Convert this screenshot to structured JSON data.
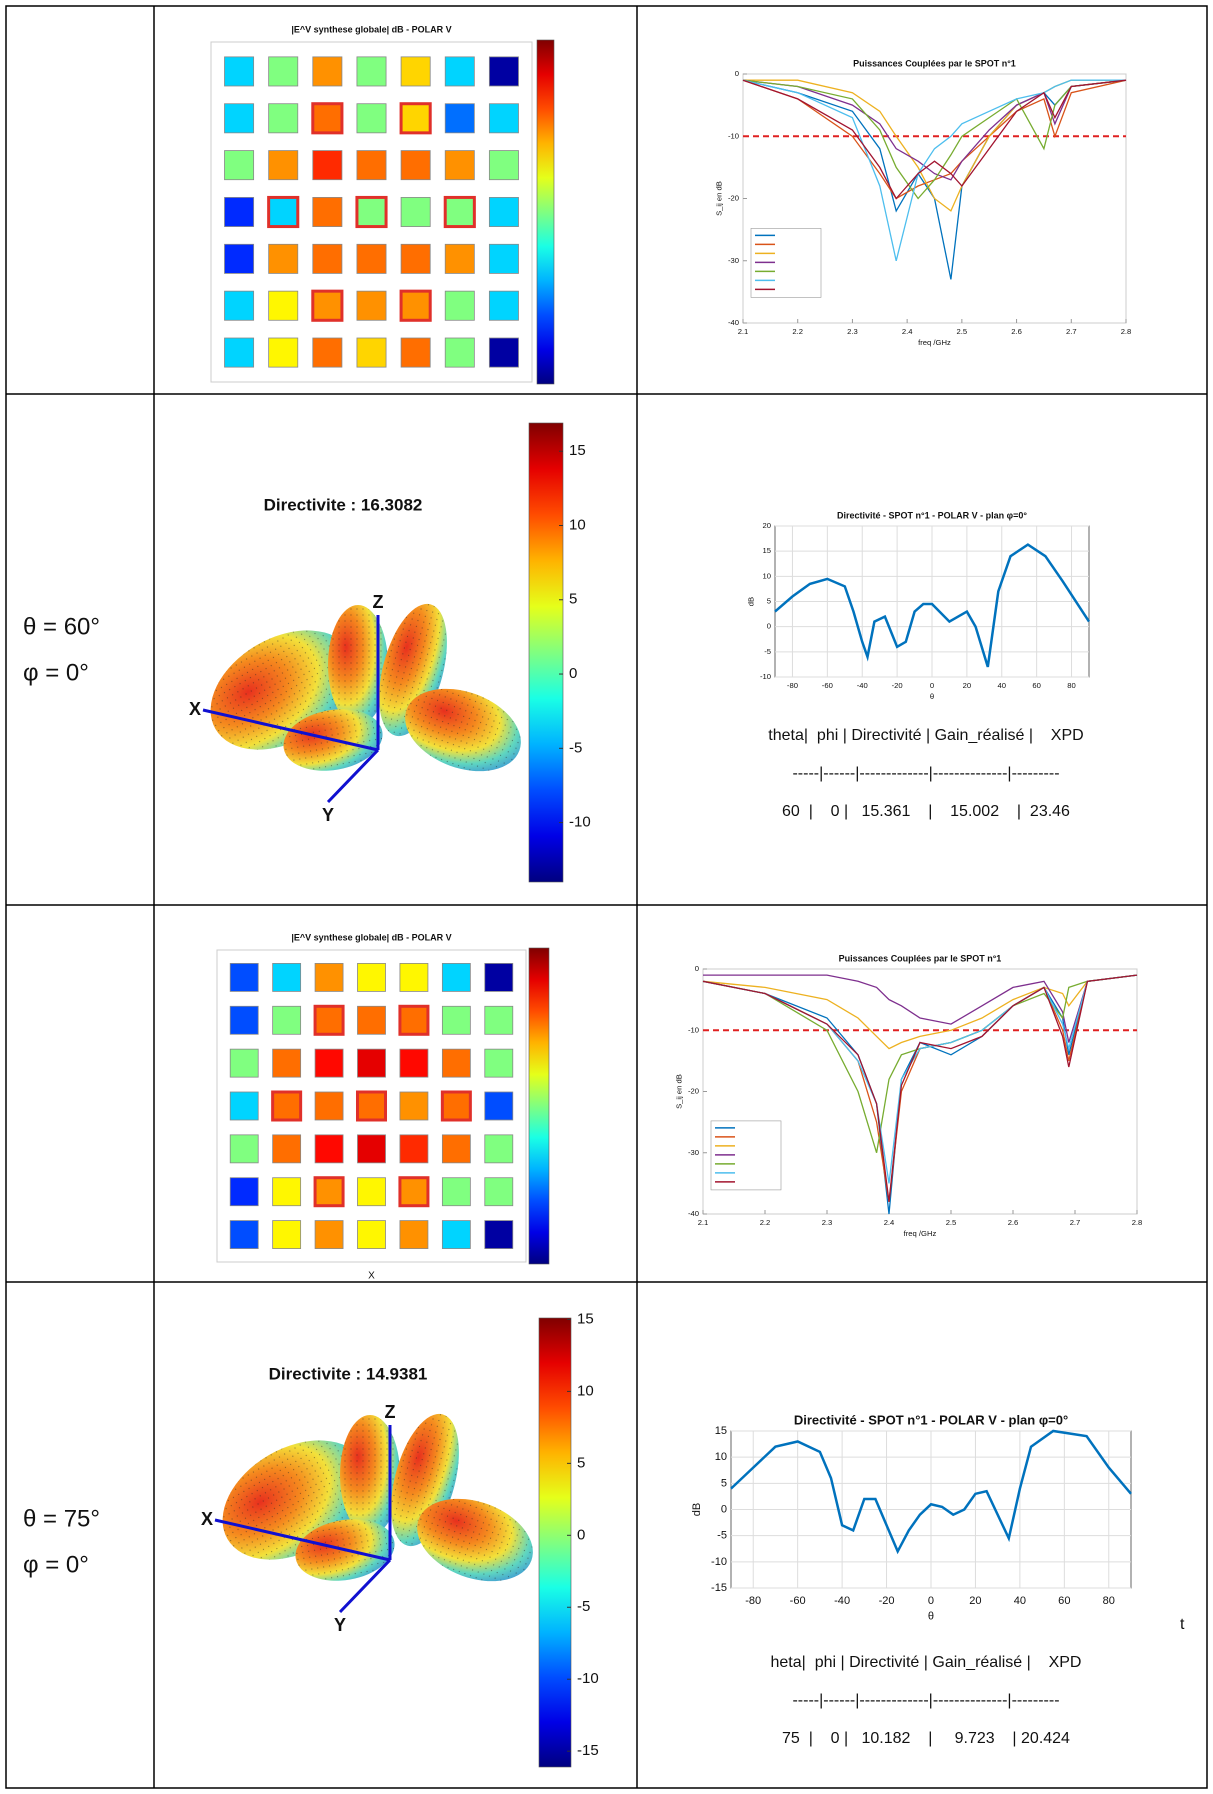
{
  "table": {
    "rows": [
      {
        "heatmap": {
          "type": "heatmap",
          "title": "|E^V synthese globale| dB - POLAR V",
          "clim": [
            -30,
            0
          ],
          "values": [
            [
              -20,
              -15,
              -8,
              -15,
              -10,
              -20,
              -29
            ],
            [
              -20,
              -15,
              -7,
              -15,
              -10,
              -23,
              -20
            ],
            [
              -15,
              -8,
              -5,
              -7,
              -7,
              -8,
              -15
            ],
            [
              -25,
              -20,
              -7,
              -15,
              -15,
              -15,
              -20
            ],
            [
              -25,
              -8,
              -7,
              -7,
              -7,
              -8,
              -20
            ],
            [
              -20,
              -11,
              -8,
              -8,
              -8,
              -15,
              -20
            ],
            [
              -20,
              -11,
              -7,
              -10,
              -7,
              -15,
              -29
            ]
          ],
          "highlighted": [
            [
              1,
              2
            ],
            [
              1,
              4
            ],
            [
              3,
              1
            ],
            [
              3,
              3
            ],
            [
              3,
              5
            ],
            [
              5,
              2
            ],
            [
              5,
              4
            ]
          ],
          "highlight_color": "#e0302a"
        },
        "coupling_chart": {
          "type": "line",
          "title": "Puissances Couplées par le SPOT n°1",
          "xlabel": "freq /GHz",
          "ylabel": "S_ij en dB",
          "xlim": [
            2.1,
            2.8
          ],
          "ylim": [
            -40,
            0
          ],
          "xticks": [
            2.1,
            2.2,
            2.3,
            2.4,
            2.5,
            2.6,
            2.7,
            2.8
          ],
          "yticks": [
            0,
            -10,
            -20,
            -30,
            -40
          ],
          "grid": false,
          "threshold": -10,
          "threshold_color": "#e02020",
          "x": [
            2.1,
            2.2,
            2.3,
            2.35,
            2.38,
            2.42,
            2.45,
            2.48,
            2.5,
            2.55,
            2.6,
            2.65,
            2.67,
            2.7,
            2.8
          ],
          "series": [
            {
              "color": "#0072bd",
              "values": [
                -1,
                -3,
                -6,
                -12,
                -22,
                -16,
                -20,
                -33,
                -18,
                -10,
                -5,
                -3,
                -5,
                -2,
                -1
              ]
            },
            {
              "color": "#d95319",
              "values": [
                -1,
                -4,
                -10,
                -16,
                -20,
                -18,
                -17,
                -16,
                -14,
                -10,
                -6,
                -4,
                -10,
                -3,
                -1
              ]
            },
            {
              "color": "#edb120",
              "values": [
                -1,
                -1,
                -3,
                -6,
                -10,
                -15,
                -20,
                -22,
                -18,
                -10,
                -5,
                -3,
                -2,
                -1,
                -1
              ]
            },
            {
              "color": "#7e2f8e",
              "values": [
                -1,
                -2,
                -5,
                -8,
                -12,
                -14,
                -16,
                -17,
                -14,
                -9,
                -5,
                -3,
                -8,
                -2,
                -1
              ]
            },
            {
              "color": "#77ac30",
              "values": [
                -1,
                -2,
                -4,
                -9,
                -15,
                -20,
                -17,
                -13,
                -10,
                -7,
                -4,
                -12,
                -5,
                -2,
                -1
              ]
            },
            {
              "color": "#4dbeee",
              "values": [
                -1,
                -3,
                -7,
                -18,
                -30,
                -16,
                -12,
                -10,
                -8,
                -6,
                -4,
                -3,
                -2,
                -1,
                -1
              ]
            },
            {
              "color": "#a2142f",
              "values": [
                -1,
                -4,
                -9,
                -15,
                -20,
                -16,
                -14,
                -16,
                -18,
                -12,
                -6,
                -3,
                -7,
                -2,
                -1
              ]
            }
          ]
        }
      },
      {
        "angles": [
          "θ = 60°",
          "φ = 0°"
        ],
        "pattern": {
          "title": "Directivite : 16.3082",
          "axes": [
            "X",
            "Y",
            "Z"
          ],
          "clim": [
            -14,
            16.9
          ],
          "cticks": [
            15,
            10,
            5,
            0,
            -5,
            -10
          ]
        },
        "directivity_chart": {
          "type": "line",
          "title": "Directivité - SPOT n°1 - POLAR V - plan φ=0°",
          "xlabel": "θ",
          "ylabel": "dB",
          "xlim": [
            -90,
            90
          ],
          "ylim": [
            -10,
            20
          ],
          "xticks": [
            -80,
            -60,
            -40,
            -20,
            0,
            20,
            40,
            60,
            80
          ],
          "yticks": [
            -10,
            -5,
            0,
            5,
            10,
            15,
            20
          ],
          "grid": true,
          "x": [
            -90,
            -80,
            -70,
            -60,
            -50,
            -45,
            -40,
            -37,
            -33,
            -27,
            -20,
            -15,
            -10,
            -5,
            0,
            10,
            20,
            25,
            32,
            38,
            45,
            55,
            65,
            75,
            90
          ],
          "series": [
            {
              "color": "#0072bd",
              "values": [
                3,
                6,
                8.5,
                9.5,
                8,
                3,
                -3,
                -6,
                1,
                2,
                -4,
                -3,
                3,
                4.5,
                4.5,
                1,
                3,
                0,
                -8,
                7,
                14,
                16.3,
                14,
                9,
                1
              ]
            }
          ]
        },
        "results": [
          "theta|  phi | Directivité | Gain_réalisé |    XPD",
          "-----|------|-------------|--------------|---------",
          "60  |    0 |   15.361    |    15.002    |  23.46"
        ]
      },
      {
        "heatmap": {
          "type": "heatmap",
          "title": "|E^V synthese globale| dB - POLAR V",
          "xlabel": "X",
          "clim": [
            -30,
            0
          ],
          "values": [
            [
              -24,
              -20,
              -8,
              -11,
              -11,
              -20,
              -29
            ],
            [
              -24,
              -15,
              -7,
              -7,
              -7,
              -15,
              -15
            ],
            [
              -15,
              -7,
              -4,
              -3,
              -4,
              -7,
              -15
            ],
            [
              -20,
              -7,
              -7,
              -7,
              -8,
              -7,
              -24
            ],
            [
              -15,
              -7,
              -4,
              -3,
              -5,
              -7,
              -15
            ],
            [
              -25,
              -11,
              -8,
              -11,
              -8,
              -15,
              -15
            ],
            [
              -24,
              -11,
              -8,
              -11,
              -8,
              -20,
              -29
            ]
          ],
          "highlighted": [
            [
              1,
              2
            ],
            [
              1,
              4
            ],
            [
              3,
              1
            ],
            [
              3,
              3
            ],
            [
              3,
              5
            ],
            [
              5,
              2
            ],
            [
              5,
              4
            ]
          ],
          "highlight_color": "#e0302a"
        },
        "coupling_chart": {
          "type": "line",
          "title": "Puissances Couplées par le SPOT n°1",
          "xlabel": "freq /GHz",
          "ylabel": "S_ij en dB",
          "xlim": [
            2.1,
            2.8
          ],
          "ylim": [
            -40,
            0
          ],
          "xticks": [
            2.1,
            2.2,
            2.3,
            2.4,
            2.5,
            2.6,
            2.7,
            2.8
          ],
          "yticks": [
            0,
            -10,
            -20,
            -30,
            -40
          ],
          "grid": false,
          "threshold": -10,
          "threshold_color": "#e02020",
          "x": [
            2.1,
            2.2,
            2.3,
            2.35,
            2.38,
            2.4,
            2.42,
            2.45,
            2.5,
            2.55,
            2.6,
            2.65,
            2.68,
            2.69,
            2.72,
            2.8
          ],
          "series": [
            {
              "color": "#0072bd",
              "values": [
                -2,
                -4,
                -8,
                -14,
                -22,
                -40,
                -18,
                -12,
                -14,
                -11,
                -6,
                -3,
                -8,
                -14,
                -2,
                -1
              ]
            },
            {
              "color": "#d95319",
              "values": [
                -2,
                -4,
                -9,
                -15,
                -25,
                -38,
                -20,
                -13,
                -12,
                -10,
                -6,
                -3,
                -10,
                -15,
                -2,
                -1
              ]
            },
            {
              "color": "#edb120",
              "values": [
                -2,
                -3,
                -5,
                -8,
                -11,
                -13,
                -12,
                -11,
                -10,
                -8,
                -5,
                -3,
                -4,
                -6,
                -2,
                -1
              ]
            },
            {
              "color": "#7e2f8e",
              "values": [
                -1,
                -1,
                -1,
                -2,
                -3,
                -5,
                -6,
                -8,
                -9,
                -6,
                -3,
                -2,
                -7,
                -12,
                -2,
                -1
              ]
            },
            {
              "color": "#77ac30",
              "values": [
                -2,
                -4,
                -10,
                -20,
                -30,
                -18,
                -14,
                -13,
                -12,
                -10,
                -6,
                -4,
                -8,
                -3,
                -2,
                -1
              ]
            },
            {
              "color": "#4dbeee",
              "values": [
                -2,
                -4,
                -9,
                -15,
                -22,
                -35,
                -18,
                -13,
                -12,
                -10,
                -6,
                -3,
                -9,
                -13,
                -2,
                -1
              ]
            },
            {
              "color": "#a2142f",
              "values": [
                -2,
                -4,
                -9,
                -14,
                -22,
                -38,
                -19,
                -12,
                -13,
                -11,
                -6,
                -3,
                -11,
                -16,
                -2,
                -1
              ]
            }
          ]
        }
      },
      {
        "angles": [
          "θ = 75°",
          "φ = 0°"
        ],
        "pattern": {
          "title": "Directivite : 14.9381",
          "axes": [
            "X",
            "Y",
            "Z"
          ],
          "clim": [
            -16.1,
            15.1
          ],
          "cticks": [
            15,
            10,
            5,
            0,
            -5,
            -10,
            -15
          ]
        },
        "directivity_chart": {
          "type": "line",
          "title": "Directivité - SPOT n°1 - POLAR V - plan φ=0°",
          "xlabel": "θ",
          "ylabel": "dB",
          "xlim": [
            -90,
            90
          ],
          "ylim": [
            -15,
            15
          ],
          "xticks": [
            -80,
            -60,
            -40,
            -20,
            0,
            20,
            40,
            60,
            80
          ],
          "yticks": [
            -15,
            -10,
            -5,
            0,
            5,
            10,
            15
          ],
          "grid": true,
          "x": [
            -90,
            -80,
            -70,
            -60,
            -50,
            -45,
            -40,
            -35,
            -30,
            -25,
            -15,
            -10,
            -5,
            0,
            5,
            10,
            15,
            20,
            25,
            35,
            40,
            45,
            55,
            70,
            80,
            90
          ],
          "series": [
            {
              "color": "#0072bd",
              "values": [
                4,
                8,
                12,
                13,
                11,
                6,
                -3,
                -4,
                2,
                2,
                -8,
                -4,
                -1,
                1,
                0.5,
                -1,
                0,
                3,
                3.5,
                -5.5,
                4,
                12,
                15,
                14,
                8,
                3
              ]
            }
          ]
        },
        "results_prefix": "t",
        "results": [
          "heta|  phi | Directivité | Gain_réalisé |    XPD",
          "-----|------|-------------|--------------|---------",
          "75  |    0 |   10.182    |     9.723    | 20.424"
        ]
      }
    ]
  }
}
